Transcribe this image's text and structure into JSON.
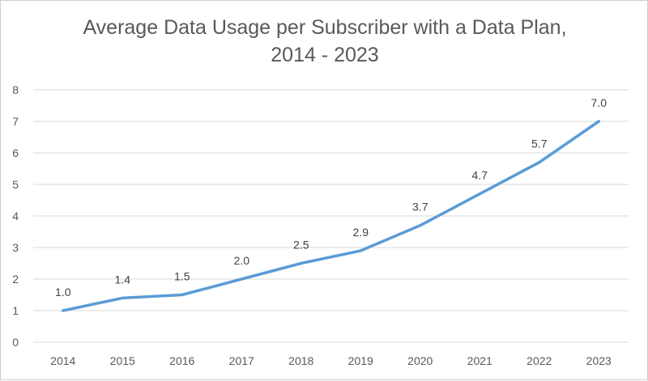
{
  "chart_data": {
    "type": "line",
    "title_line1": "Average Data Usage per Subscriber with a Data Plan,",
    "title_line2": "2014 - 2023",
    "categories": [
      "2014",
      "2015",
      "2016",
      "2017",
      "2018",
      "2019",
      "2020",
      "2021",
      "2022",
      "2023"
    ],
    "series": [
      {
        "values": [
          1.0,
          1.4,
          1.5,
          2.0,
          2.5,
          2.9,
          3.7,
          4.7,
          5.7,
          7.0
        ]
      }
    ],
    "data_labels": [
      "1.0",
      "1.4",
      "1.5",
      "2.0",
      "2.5",
      "2.9",
      "3.7",
      "4.7",
      "5.7",
      "7.0"
    ],
    "y_ticks": [
      "0",
      "1",
      "2",
      "3",
      "4",
      "5",
      "6",
      "7",
      "8"
    ],
    "ylim": [
      0,
      8
    ],
    "grid": true,
    "legend": false,
    "colors": {
      "line": "#5b9bd5",
      "grid": "#d9d9d9",
      "text": "#595959"
    }
  }
}
